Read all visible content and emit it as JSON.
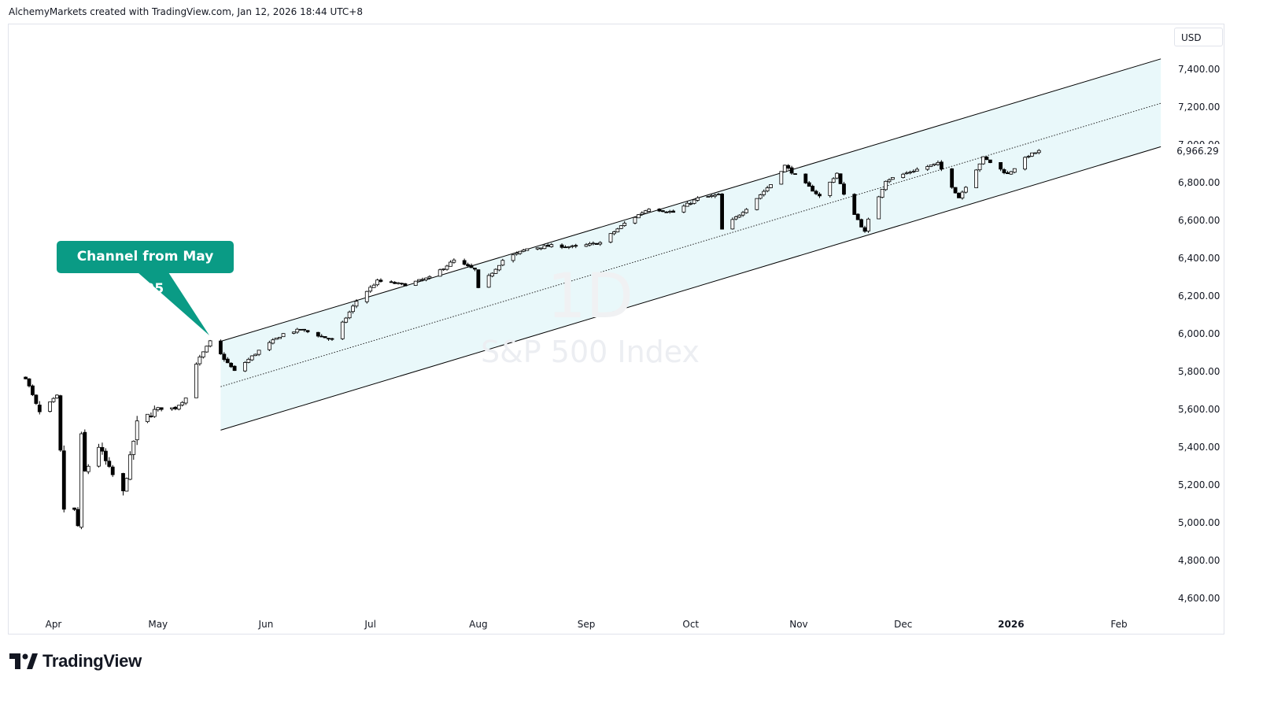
{
  "attribution": "AlchemyMarkets created with TradingView.com, Jan 12, 2026 18:44 UTC+8",
  "currency": "USD",
  "last_price_label": "6,966.29",
  "watermark": {
    "interval": "1D",
    "symbol": "S&P 500 Index"
  },
  "annotation": {
    "text": "Channel from May 2025"
  },
  "brand": {
    "name": "TradingView",
    "icon": "tradingview-logo-icon"
  },
  "colors": {
    "channel_fill": "#e9f8fa",
    "callout_bg": "#0a9b85",
    "candle_up": "#ffffff",
    "candle_down": "#000000",
    "line": "#000000"
  },
  "chart_data": {
    "type": "candlestick",
    "title": "S&P 500 Index",
    "interval": "1D",
    "ylim": [
      4500,
      7600
    ],
    "y_ticks": [
      4600,
      4800,
      5000,
      5200,
      5400,
      5600,
      5800,
      6000,
      6200,
      6400,
      6600,
      6800,
      7000,
      7200,
      7400
    ],
    "y_tick_labels": [
      "4,600.00",
      "4,800.00",
      "5,000.00",
      "5,200.00",
      "5,400.00",
      "5,600.00",
      "5,800.00",
      "6,000.00",
      "6,200.00",
      "6,400.00",
      "6,600.00",
      "6,800.00",
      "7,000.00",
      "7,200.00",
      "7,400.00"
    ],
    "x_axis_labels": [
      {
        "label": "Apr",
        "date": "2025-04-01"
      },
      {
        "label": "May",
        "date": "2025-05-01"
      },
      {
        "label": "Jun",
        "date": "2025-06-01"
      },
      {
        "label": "Jul",
        "date": "2025-07-01"
      },
      {
        "label": "Aug",
        "date": "2025-08-01"
      },
      {
        "label": "Sep",
        "date": "2025-09-01"
      },
      {
        "label": "Oct",
        "date": "2025-10-01"
      },
      {
        "label": "Nov",
        "date": "2025-11-01"
      },
      {
        "label": "Dec",
        "date": "2025-12-01"
      },
      {
        "label": "2026",
        "date": "2026-01-01",
        "bold": true
      },
      {
        "label": "Feb",
        "date": "2026-02-01"
      }
    ],
    "x_range": [
      "2025-03-25",
      "2026-02-15"
    ],
    "last_price": 6966.29,
    "channel": {
      "upper": [
        {
          "date": "2025-05-19",
          "value": 5960
        },
        {
          "date": "2026-02-13",
          "value": 7455
        }
      ],
      "middle": [
        {
          "date": "2025-05-19",
          "value": 5720
        },
        {
          "date": "2026-02-13",
          "value": 7220
        }
      ],
      "lower": [
        {
          "date": "2025-05-19",
          "value": 5490
        },
        {
          "date": "2026-02-13",
          "value": 6990
        }
      ]
    },
    "ohlc_series": [
      {
        "date": "2025-03-24",
        "close": 5768
      },
      {
        "date": "2025-03-28",
        "close": 5580
      },
      {
        "date": "2025-04-02",
        "close": 5670
      },
      {
        "date": "2025-04-04",
        "close": 5074
      },
      {
        "date": "2025-04-07",
        "close": 5062
      },
      {
        "date": "2025-04-08",
        "close": 4982
      },
      {
        "date": "2025-04-09",
        "close": 5456
      },
      {
        "date": "2025-04-10",
        "close": 5268
      },
      {
        "date": "2025-04-14",
        "close": 5405
      },
      {
        "date": "2025-04-17",
        "close": 5282
      },
      {
        "date": "2025-04-21",
        "close": 5158
      },
      {
        "date": "2025-04-25",
        "close": 5525
      },
      {
        "date": "2025-05-01",
        "close": 5604
      },
      {
        "date": "2025-05-06",
        "close": 5607
      },
      {
        "date": "2025-05-09",
        "close": 5660
      },
      {
        "date": "2025-05-12",
        "close": 5844
      },
      {
        "date": "2025-05-16",
        "close": 5958
      },
      {
        "date": "2025-05-21",
        "close": 5845
      },
      {
        "date": "2025-05-23",
        "close": 5802
      },
      {
        "date": "2025-05-30",
        "close": 5911
      },
      {
        "date": "2025-06-06",
        "close": 6000
      },
      {
        "date": "2025-06-11",
        "close": 6022
      },
      {
        "date": "2025-06-20",
        "close": 5968
      },
      {
        "date": "2025-06-27",
        "close": 6173
      },
      {
        "date": "2025-07-03",
        "close": 6279
      },
      {
        "date": "2025-07-11",
        "close": 6260
      },
      {
        "date": "2025-07-18",
        "close": 6297
      },
      {
        "date": "2025-07-25",
        "close": 6388
      },
      {
        "date": "2025-07-31",
        "close": 6339
      },
      {
        "date": "2025-08-01",
        "close": 6238
      },
      {
        "date": "2025-08-08",
        "close": 6389
      },
      {
        "date": "2025-08-15",
        "close": 6450
      },
      {
        "date": "2025-08-22",
        "close": 6466
      },
      {
        "date": "2025-08-29",
        "close": 6460
      },
      {
        "date": "2025-09-05",
        "close": 6482
      },
      {
        "date": "2025-09-12",
        "close": 6584
      },
      {
        "date": "2025-09-19",
        "close": 6664
      },
      {
        "date": "2025-09-26",
        "close": 6643
      },
      {
        "date": "2025-10-03",
        "close": 6716
      },
      {
        "date": "2025-10-09",
        "close": 6735
      },
      {
        "date": "2025-10-10",
        "close": 6552
      },
      {
        "date": "2025-10-17",
        "close": 6664
      },
      {
        "date": "2025-10-24",
        "close": 6791
      },
      {
        "date": "2025-10-28",
        "close": 6890
      },
      {
        "date": "2025-10-31",
        "close": 6840
      },
      {
        "date": "2025-11-07",
        "close": 6728
      },
      {
        "date": "2025-11-12",
        "close": 6850
      },
      {
        "date": "2025-11-14",
        "close": 6734
      },
      {
        "date": "2025-11-20",
        "close": 6538
      },
      {
        "date": "2025-11-21",
        "close": 6602
      },
      {
        "date": "2025-11-26",
        "close": 6812
      },
      {
        "date": "2025-12-05",
        "close": 6870
      },
      {
        "date": "2025-12-11",
        "close": 6901
      },
      {
        "date": "2025-12-17",
        "close": 6721
      },
      {
        "date": "2025-12-24",
        "close": 6932
      },
      {
        "date": "2025-12-31",
        "close": 6845
      },
      {
        "date": "2026-01-06",
        "close": 6944
      },
      {
        "date": "2026-01-09",
        "close": 6966.29
      }
    ]
  }
}
